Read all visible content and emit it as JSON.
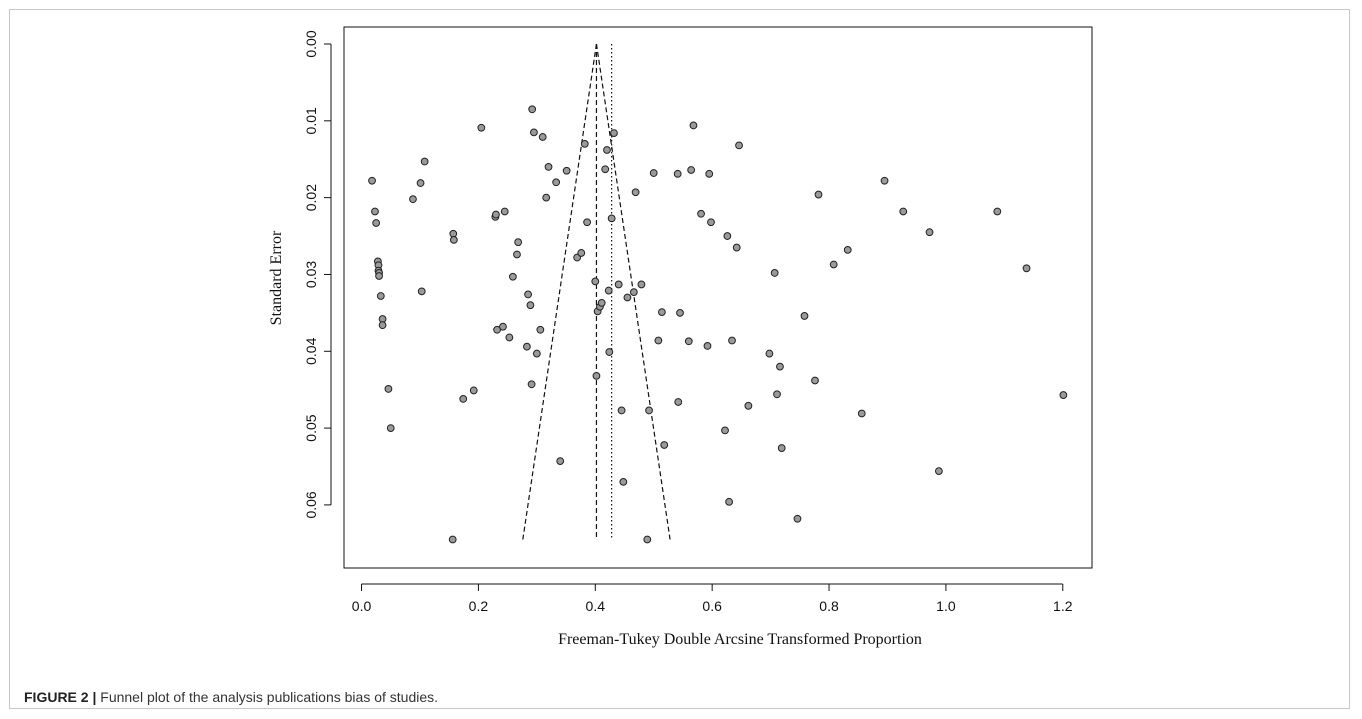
{
  "caption": {
    "figure_label": "FIGURE 2 |",
    "text": " Funnel plot of the analysis publications bias of studies."
  },
  "colors": {
    "point_fill": "#9a9a9a",
    "point_stroke": "#222222",
    "line": "#111111"
  },
  "chart_data": {
    "type": "scatter",
    "title": "",
    "xlabel": "Freeman-Tukey Double Arcsine Transformed Proportion",
    "ylabel": "Standard Error",
    "xlim": [
      -0.03,
      1.25
    ],
    "ylim": [
      0.0,
      0.066
    ],
    "y_reversed": true,
    "grid": false,
    "x_ticks": [
      0.0,
      0.2,
      0.4,
      0.6,
      0.8,
      1.0,
      1.2
    ],
    "x_tick_labels": [
      "0.0",
      "0.2",
      "0.4",
      "0.6",
      "0.8",
      "1.0",
      "1.2"
    ],
    "y_ticks": [
      0.0,
      0.01,
      0.02,
      0.03,
      0.04,
      0.05,
      0.06
    ],
    "y_tick_labels": [
      "0.00",
      "0.01",
      "0.02",
      "0.03",
      "0.04",
      "0.05",
      "0.06"
    ],
    "pooled_estimate_dashed": 0.402,
    "mean_estimate_dotted": 0.428,
    "funnel": {
      "apex": [
        0.402,
        0.0
      ],
      "base_y": 0.0645,
      "base_left": 0.276,
      "base_right": 0.528
    },
    "points": [
      [
        0.018,
        0.0178
      ],
      [
        0.023,
        0.0218
      ],
      [
        0.025,
        0.0233
      ],
      [
        0.028,
        0.0283
      ],
      [
        0.029,
        0.0288
      ],
      [
        0.029,
        0.0295
      ],
      [
        0.03,
        0.0298
      ],
      [
        0.03,
        0.0302
      ],
      [
        0.033,
        0.0328
      ],
      [
        0.036,
        0.0358
      ],
      [
        0.036,
        0.0366
      ],
      [
        0.046,
        0.0449
      ],
      [
        0.05,
        0.05
      ],
      [
        0.088,
        0.0202
      ],
      [
        0.101,
        0.0181
      ],
      [
        0.103,
        0.0322
      ],
      [
        0.108,
        0.0153
      ],
      [
        0.157,
        0.0247
      ],
      [
        0.158,
        0.0255
      ],
      [
        0.156,
        0.0645
      ],
      [
        0.174,
        0.0462
      ],
      [
        0.192,
        0.0451
      ],
      [
        0.205,
        0.0109
      ],
      [
        0.229,
        0.0225
      ],
      [
        0.23,
        0.0222
      ],
      [
        0.245,
        0.0218
      ],
      [
        0.232,
        0.0372
      ],
      [
        0.242,
        0.0368
      ],
      [
        0.253,
        0.0382
      ],
      [
        0.259,
        0.0303
      ],
      [
        0.266,
        0.0274
      ],
      [
        0.268,
        0.0258
      ],
      [
        0.283,
        0.0394
      ],
      [
        0.285,
        0.0326
      ],
      [
        0.289,
        0.034
      ],
      [
        0.291,
        0.0443
      ],
      [
        0.292,
        0.0085
      ],
      [
        0.295,
        0.0115
      ],
      [
        0.3,
        0.0403
      ],
      [
        0.306,
        0.0372
      ],
      [
        0.31,
        0.0121
      ],
      [
        0.316,
        0.02
      ],
      [
        0.32,
        0.016
      ],
      [
        0.333,
        0.018
      ],
      [
        0.34,
        0.0543
      ],
      [
        0.351,
        0.0165
      ],
      [
        0.369,
        0.0278
      ],
      [
        0.376,
        0.0272
      ],
      [
        0.382,
        0.013
      ],
      [
        0.386,
        0.0232
      ],
      [
        0.4,
        0.0309
      ],
      [
        0.402,
        0.0432
      ],
      [
        0.404,
        0.0348
      ],
      [
        0.408,
        0.0342
      ],
      [
        0.411,
        0.0337
      ],
      [
        0.417,
        0.0163
      ],
      [
        0.42,
        0.0138
      ],
      [
        0.423,
        0.0321
      ],
      [
        0.424,
        0.0401
      ],
      [
        0.428,
        0.0227
      ],
      [
        0.432,
        0.0116
      ],
      [
        0.44,
        0.0313
      ],
      [
        0.445,
        0.0477
      ],
      [
        0.448,
        0.057
      ],
      [
        0.455,
        0.033
      ],
      [
        0.466,
        0.0323
      ],
      [
        0.469,
        0.0193
      ],
      [
        0.479,
        0.0313
      ],
      [
        0.489,
        0.0645
      ],
      [
        0.492,
        0.0477
      ],
      [
        0.5,
        0.0168
      ],
      [
        0.508,
        0.0386
      ],
      [
        0.514,
        0.0349
      ],
      [
        0.518,
        0.0522
      ],
      [
        0.541,
        0.0169
      ],
      [
        0.542,
        0.0466
      ],
      [
        0.545,
        0.035
      ],
      [
        0.56,
        0.0387
      ],
      [
        0.564,
        0.0164
      ],
      [
        0.568,
        0.0106
      ],
      [
        0.581,
        0.0221
      ],
      [
        0.592,
        0.0393
      ],
      [
        0.595,
        0.0169
      ],
      [
        0.598,
        0.0232
      ],
      [
        0.622,
        0.0503
      ],
      [
        0.626,
        0.025
      ],
      [
        0.629,
        0.0596
      ],
      [
        0.634,
        0.0386
      ],
      [
        0.642,
        0.0265
      ],
      [
        0.646,
        0.0132
      ],
      [
        0.662,
        0.0471
      ],
      [
        0.698,
        0.0403
      ],
      [
        0.707,
        0.0298
      ],
      [
        0.711,
        0.0456
      ],
      [
        0.716,
        0.042
      ],
      [
        0.719,
        0.0526
      ],
      [
        0.746,
        0.0618
      ],
      [
        0.758,
        0.0354
      ],
      [
        0.776,
        0.0438
      ],
      [
        0.782,
        0.0196
      ],
      [
        0.808,
        0.0287
      ],
      [
        0.832,
        0.0268
      ],
      [
        0.856,
        0.0481
      ],
      [
        0.895,
        0.0178
      ],
      [
        0.927,
        0.0218
      ],
      [
        0.972,
        0.0245
      ],
      [
        0.988,
        0.0556
      ],
      [
        1.088,
        0.0218
      ],
      [
        1.138,
        0.0292
      ],
      [
        1.201,
        0.0457
      ]
    ]
  }
}
